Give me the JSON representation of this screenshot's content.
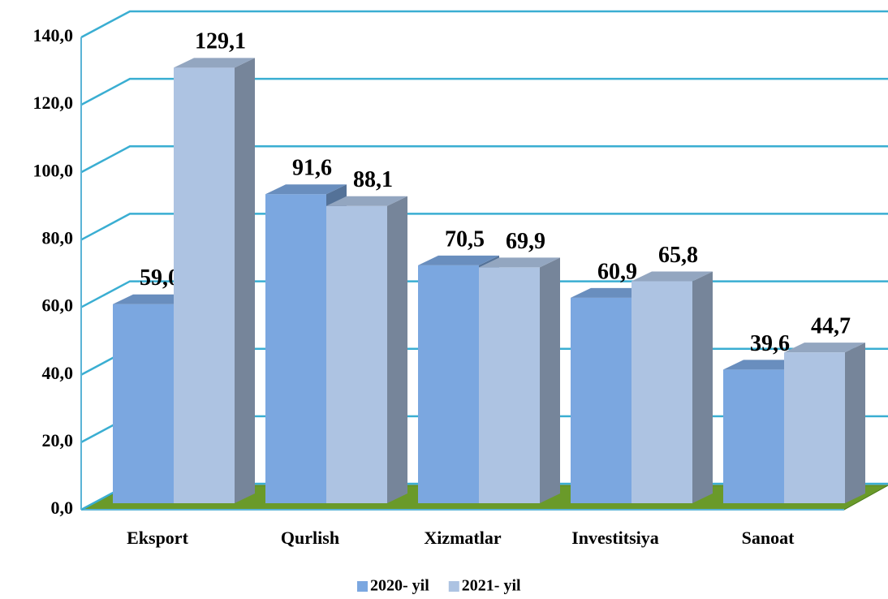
{
  "chart_data": {
    "type": "bar3d",
    "categories": [
      "Eksport",
      "Qurlish",
      "Xizmatlar",
      "Investitsiya",
      "Sanoat"
    ],
    "series": [
      {
        "name": "2020- yil",
        "color": "#7ba7e0",
        "values": [
          59.0,
          91.6,
          70.5,
          60.9,
          39.6
        ],
        "value_labels": [
          "59,0",
          "91,6",
          "70,5",
          "60,9",
          "39,6"
        ]
      },
      {
        "name": "2021- yil",
        "color": "#adc3e2",
        "values": [
          129.1,
          88.1,
          69.9,
          65.8,
          44.7
        ],
        "value_labels": [
          "129,1",
          "88,1",
          "69,9",
          "65,8",
          "44,7"
        ]
      }
    ],
    "ylim": [
      0,
      140
    ],
    "yticks": [
      {
        "value": 0,
        "label": "0,0"
      },
      {
        "value": 20,
        "label": "20,0"
      },
      {
        "value": 40,
        "label": "40,0"
      },
      {
        "value": 60,
        "label": "60,0"
      },
      {
        "value": 80,
        "label": "80,0"
      },
      {
        "value": 100,
        "label": "100,0"
      },
      {
        "value": 120,
        "label": "120,0"
      },
      {
        "value": 140,
        "label": "140,0"
      }
    ],
    "grid": true,
    "legend": "bottom"
  }
}
